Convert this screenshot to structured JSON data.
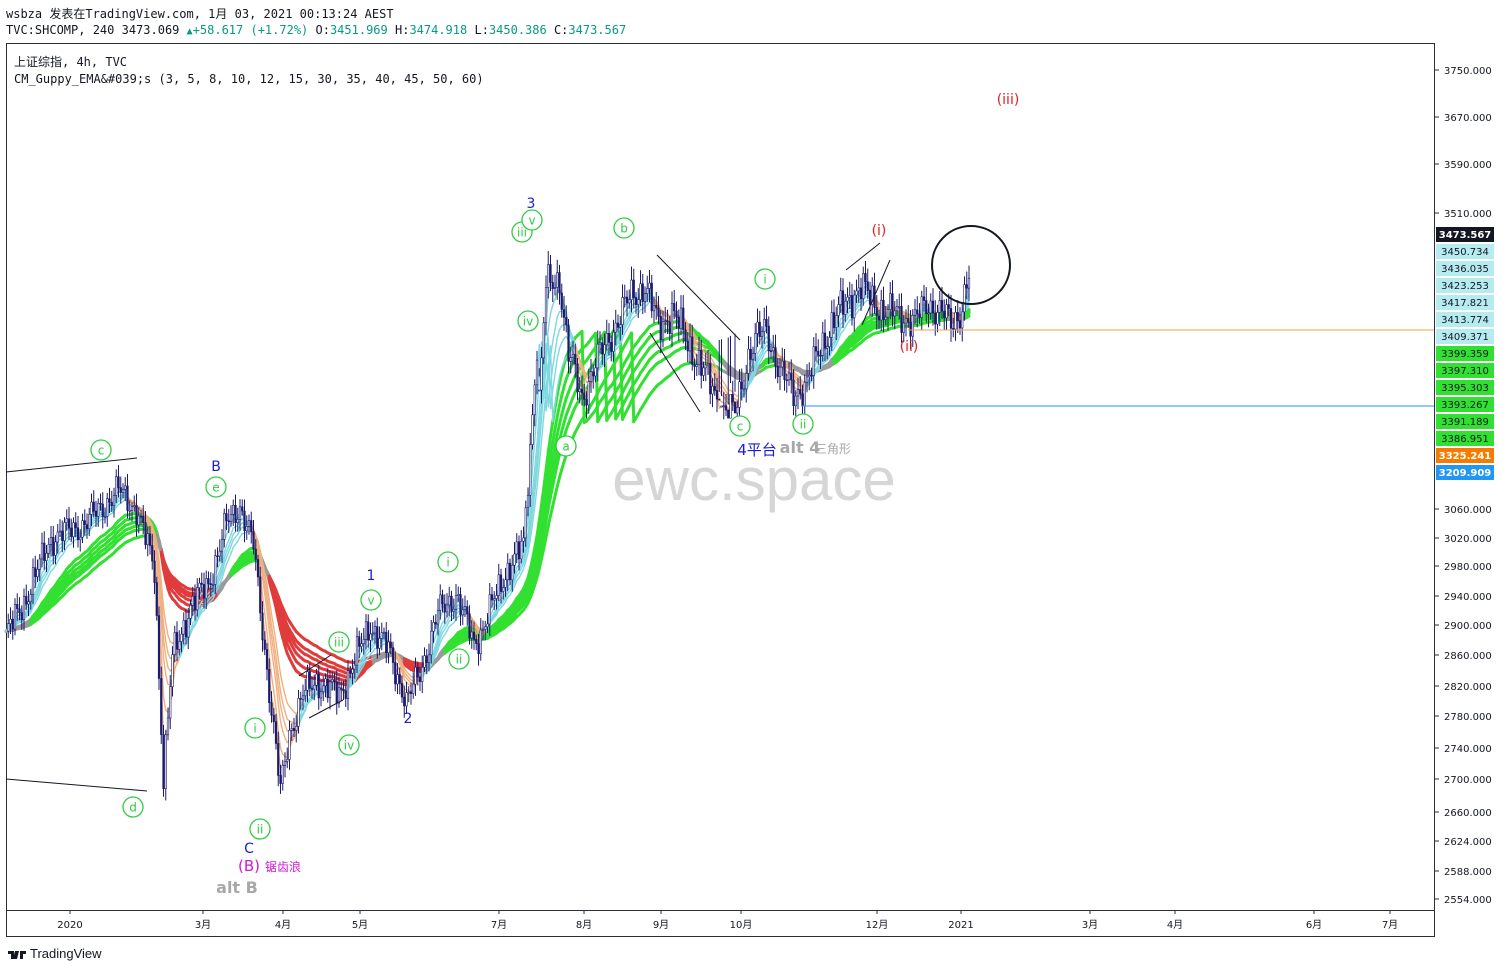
{
  "header": {
    "author": "wsbza",
    "published": "发表在TradingView.com, 1月 03, 2021 00:13:24 AEST",
    "symbol": "TVC:SHCOMP, 240",
    "last": "3473.069",
    "change": "+58.617 (+1.72%)",
    "o_label": "O:",
    "o": "3451.969",
    "h_label": "H:",
    "h": "3474.918",
    "l_label": "L:",
    "l": "3450.386",
    "c_label": "C:",
    "c": "3473.567"
  },
  "legend": {
    "title": "上证综指, 4h, TVC",
    "indicator": "CM_Guppy_EMA&#039;s (3, 5, 8, 10, 12, 15, 30, 35, 40, 45, 50, 60)"
  },
  "watermark": "ewc.space",
  "footer": {
    "brand": "TradingView"
  },
  "colors": {
    "candle": "#1b1b6e",
    "ema_fast_up": "#7fd8e0",
    "ema_slow_up": "#32e032",
    "ema_slow_down": "#e03c3c",
    "ema_neutral": "#9a9a9a",
    "ema_fast_down": "#f0b080",
    "wave_green": "#2ecc40",
    "wave_blue": "#1c1cd6",
    "wave_red": "#e02020",
    "magenta": "#d418d4"
  },
  "chart_data": {
    "type": "line",
    "title": "",
    "x_ticks": [
      "2020",
      "3月",
      "4月",
      "5月",
      "7月",
      "8月",
      "9月",
      "10月",
      "12月",
      "2021",
      "3月",
      "4月",
      "6月",
      "7月"
    ],
    "price_axis_ticks": [
      "3750.000",
      "3670.000",
      "3590.000",
      "3510.000",
      "3060.000",
      "3020.000",
      "2980.000",
      "2940.000",
      "2900.000",
      "2860.000",
      "2820.000",
      "2780.000",
      "2740.000",
      "2700.000",
      "2660.000",
      "2624.000",
      "2588.000",
      "2554.000"
    ],
    "price_labels": [
      {
        "value": "3473.567",
        "color": "#131722"
      },
      {
        "value": "3450.734",
        "color": "#b6ecf1"
      },
      {
        "value": "3436.035",
        "color": "#b6ecf1"
      },
      {
        "value": "3423.253",
        "color": "#b6ecf1"
      },
      {
        "value": "3417.821",
        "color": "#b6ecf1"
      },
      {
        "value": "3413.774",
        "color": "#b6ecf1"
      },
      {
        "value": "3409.371",
        "color": "#b6ecf1"
      },
      {
        "value": "3399.359",
        "color": "#32e032"
      },
      {
        "value": "3397.310",
        "color": "#32e032"
      },
      {
        "value": "3395.303",
        "color": "#32e032"
      },
      {
        "value": "3393.267",
        "color": "#32e032"
      },
      {
        "value": "3391.189",
        "color": "#32e032"
      },
      {
        "value": "3386.951",
        "color": "#32e032"
      },
      {
        "value": "3325.241",
        "color": "#f57c00"
      },
      {
        "value": "3209.909",
        "color": "#2196f3"
      }
    ],
    "price_path": [
      [
        0,
        2890
      ],
      [
        8,
        2935
      ],
      [
        20,
        3020
      ],
      [
        35,
        3040
      ],
      [
        50,
        3085
      ],
      [
        58,
        3060
      ],
      [
        66,
        2980
      ],
      [
        70,
        2700
      ],
      [
        74,
        2860
      ],
      [
        82,
        2930
      ],
      [
        90,
        2960
      ],
      [
        98,
        3040
      ],
      [
        104,
        3065
      ],
      [
        110,
        3010
      ],
      [
        114,
        2900
      ],
      [
        118,
        2790
      ],
      [
        122,
        2680
      ],
      [
        126,
        2760
      ],
      [
        132,
        2810
      ],
      [
        138,
        2830
      ],
      [
        148,
        2810
      ],
      [
        154,
        2850
      ],
      [
        162,
        2905
      ],
      [
        170,
        2870
      ],
      [
        176,
        2820
      ],
      [
        178,
        2800
      ],
      [
        184,
        2840
      ],
      [
        192,
        2920
      ],
      [
        200,
        2945
      ],
      [
        208,
        2880
      ],
      [
        212,
        2900
      ],
      [
        222,
        2975
      ],
      [
        230,
        3010
      ],
      [
        240,
        3460
      ],
      [
        246,
        3470
      ],
      [
        250,
        3380
      ],
      [
        256,
        3330
      ],
      [
        264,
        3380
      ],
      [
        272,
        3420
      ],
      [
        278,
        3450
      ],
      [
        284,
        3460
      ],
      [
        290,
        3415
      ],
      [
        296,
        3430
      ],
      [
        306,
        3380
      ],
      [
        318,
        3320
      ],
      [
        324,
        3310
      ],
      [
        330,
        3380
      ],
      [
        334,
        3400
      ],
      [
        338,
        3410
      ],
      [
        344,
        3360
      ],
      [
        350,
        3335
      ],
      [
        356,
        3345
      ],
      [
        362,
        3390
      ],
      [
        368,
        3420
      ],
      [
        374,
        3445
      ],
      [
        380,
        3460
      ],
      [
        386,
        3440
      ],
      [
        392,
        3430
      ],
      [
        398,
        3425
      ],
      [
        404,
        3420
      ],
      [
        410,
        3440
      ],
      [
        416,
        3430
      ],
      [
        420,
        3415
      ],
      [
        424,
        3430
      ],
      [
        428,
        3473
      ]
    ],
    "axis_labels": {
      "y": "",
      "x": ""
    },
    "wave_labels": [
      {
        "text": "c",
        "circled": true,
        "color": "#2ecc40"
      },
      {
        "text": "d",
        "circled": true,
        "color": "#2ecc40"
      },
      {
        "text": "e",
        "circled": true,
        "color": "#2ecc40"
      },
      {
        "text": "B",
        "circled": false,
        "color": "#1c1cd6"
      },
      {
        "text": "C",
        "circled": false,
        "color": "#1c1cd6"
      },
      {
        "text": "(B)",
        "circled": false,
        "color": "#d418d4"
      },
      {
        "text": "锯齿浪",
        "circled": false,
        "color": "#d418d4"
      },
      {
        "text": "alt B",
        "circled": false,
        "color": "#a8a8a8"
      },
      {
        "text": "i",
        "circled": true,
        "color": "#2ecc40"
      },
      {
        "text": "ii",
        "circled": true,
        "color": "#2ecc40"
      },
      {
        "text": "iii",
        "circled": true,
        "color": "#2ecc40"
      },
      {
        "text": "iv",
        "circled": true,
        "color": "#2ecc40"
      },
      {
        "text": "v",
        "circled": true,
        "color": "#2ecc40"
      },
      {
        "text": "1",
        "circled": false,
        "color": "#1c1cd6"
      },
      {
        "text": "2",
        "circled": false,
        "color": "#1c1cd6"
      },
      {
        "text": "i",
        "circled": true,
        "color": "#2ecc40"
      },
      {
        "text": "ii",
        "circled": true,
        "color": "#2ecc40"
      },
      {
        "text": "3",
        "circled": false,
        "color": "#1c1cd6"
      },
      {
        "text": "iii",
        "circled": true,
        "color": "#2ecc40"
      },
      {
        "text": "v",
        "circled": true,
        "color": "#2ecc40"
      },
      {
        "text": "iv",
        "circled": true,
        "color": "#2ecc40"
      },
      {
        "text": "a",
        "circled": true,
        "color": "#2ecc40"
      },
      {
        "text": "b",
        "circled": true,
        "color": "#2ecc40"
      },
      {
        "text": "c",
        "circled": true,
        "color": "#2ecc40"
      },
      {
        "text": "4平台",
        "circled": false,
        "color": "#1c1cd6"
      },
      {
        "text": "alt 4",
        "circled": false,
        "color": "#a8a8a8"
      },
      {
        "text": "三角形",
        "circled": false,
        "color": "#a8a8a8"
      },
      {
        "text": "i",
        "circled": true,
        "color": "#2ecc40"
      },
      {
        "text": "ii",
        "circled": true,
        "color": "#2ecc40"
      },
      {
        "text": "(i)",
        "circled": false,
        "color": "#e02020"
      },
      {
        "text": "(ii)",
        "circled": false,
        "color": "#e02020"
      },
      {
        "text": "(iii)",
        "circled": false,
        "color": "#e02020"
      }
    ]
  }
}
